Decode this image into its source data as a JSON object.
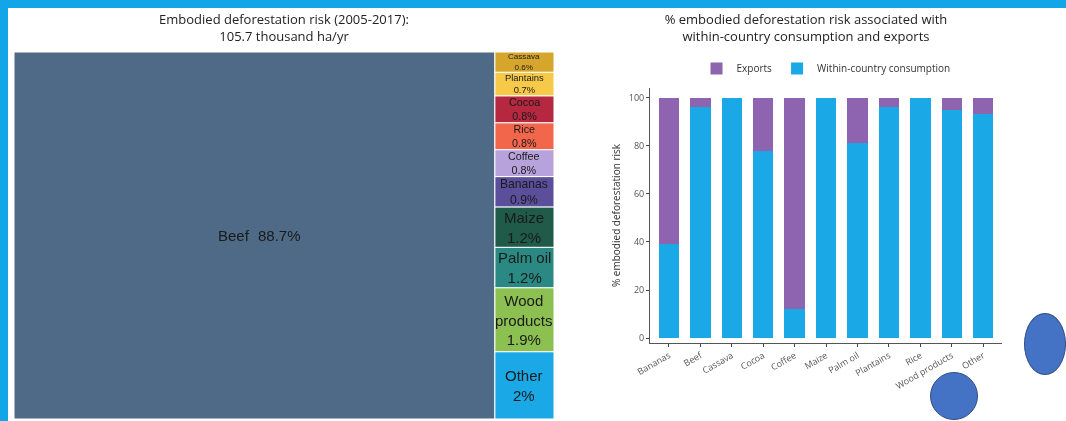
{
  "chart_data": [
    {
      "type": "other",
      "title": "Embodied deforestation risk (2005-2017):\n105.7 thousand ha/yr",
      "categories": [
        "Beef",
        "Other",
        "Wood products",
        "Palm oil",
        "Maize",
        "Bananas",
        "Coffee",
        "Rice",
        "Cocoa",
        "Plantains",
        "Cassava"
      ],
      "values": [
        88.7,
        2,
        1.9,
        1.2,
        1.2,
        0.9,
        0.8,
        0.8,
        0.8,
        0.7,
        0.6
      ],
      "colors": [
        "#4e6a86",
        "#1aa8e6",
        "#8cc152",
        "#2a8a83",
        "#1f5b48",
        "#5b4f9c",
        "#b8a2dc",
        "#f2674c",
        "#b5283f",
        "#f7c948",
        "#d6a62c"
      ],
      "value_labels": [
        "88.7%",
        "2%",
        "1.9%",
        "1.2%",
        "1.2%",
        "0.9%",
        "0.8%",
        "0.8%",
        "0.8%",
        "0.7%",
        "0.6%"
      ]
    },
    {
      "type": "bar",
      "title": "% embodied deforestation risk associated with\nwithin-country consumption and exports",
      "ylabel": "% embodied deforestation risk",
      "categories": [
        "Bananas",
        "Beef",
        "Cassava",
        "Cocoa",
        "Coffee",
        "Maize",
        "Palm oil",
        "Plantains",
        "Rice",
        "Wood products",
        "Other"
      ],
      "stacked": true,
      "series": [
        {
          "name": "Within-country consumption",
          "color": "#1aa8e6",
          "values": [
            39,
            96,
            100,
            78,
            12,
            100,
            81,
            96,
            100,
            95,
            93
          ]
        },
        {
          "name": "Exports",
          "color": "#8e63b0",
          "values": [
            61,
            4,
            0,
            22,
            88,
            0,
            19,
            4,
            0,
            5,
            7
          ]
        }
      ],
      "ylim": [
        -2,
        104
      ],
      "yticks": [
        0,
        20,
        40,
        60,
        80,
        100
      ],
      "grid": false,
      "legend": "top"
    }
  ]
}
